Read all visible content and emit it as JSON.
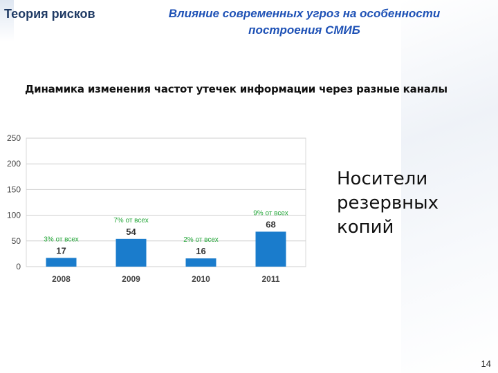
{
  "slide": {
    "section_title": "Теория рисков",
    "header_title_line1": "Влияние современных угроз на особенности",
    "header_title_line2": "построения СМИБ",
    "subtitle": "Динамика изменения частот утечек информации через разные каналы",
    "side_text_lines": [
      "Носители",
      "резервных",
      "копий"
    ],
    "page_number": "14"
  },
  "colors": {
    "bar": "#1a7ccc",
    "annotation": "#22a537",
    "grid": "#cfcfcf",
    "title_dark": "#1f3a64",
    "title_blue": "#1f52b6"
  },
  "chart_data": {
    "type": "bar",
    "categories": [
      "2008",
      "2009",
      "2010",
      "2011"
    ],
    "values": [
      17,
      54,
      16,
      68
    ],
    "data_labels": [
      "17",
      "54",
      "16",
      "68"
    ],
    "annotations": [
      "3% от всех",
      "7% от всех",
      "2% от всех",
      "9% от всех"
    ],
    "ylim": [
      0,
      250
    ],
    "yticks": [
      0,
      50,
      100,
      150,
      200,
      250
    ],
    "ytick_labels": [
      "0",
      "50",
      "100",
      "150",
      "200",
      "250"
    ],
    "grid": true,
    "legend": "none"
  }
}
